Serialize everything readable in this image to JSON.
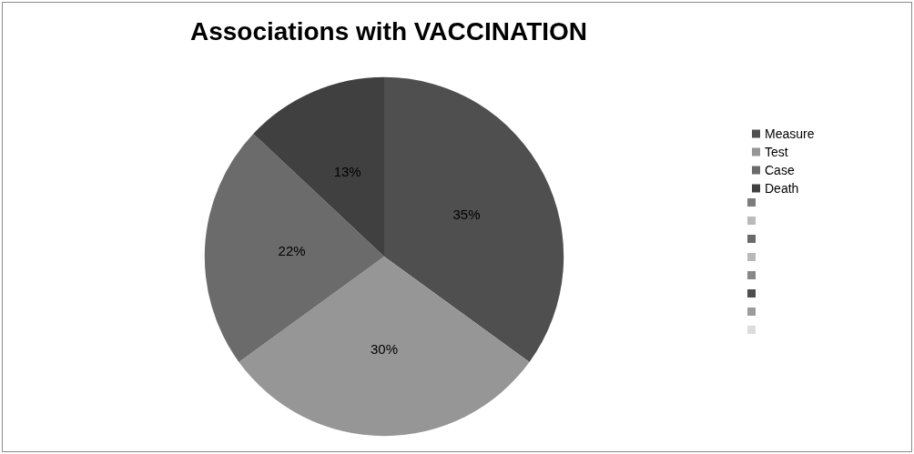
{
  "chart_data": {
    "type": "pie",
    "title": "Associations with VACCINATION",
    "categories": [
      "Measure",
      "Test",
      "Case",
      "Death",
      null,
      null,
      null,
      null,
      null,
      null,
      null,
      null
    ],
    "values": [
      35,
      30,
      22,
      13,
      null,
      null,
      null,
      null,
      null,
      null,
      null,
      null
    ],
    "value_labels": [
      "35%",
      "30%",
      "22%",
      "13%",
      null,
      null,
      null,
      null,
      null,
      null,
      null,
      null
    ],
    "colors": [
      "#4f4f4f",
      "#969696",
      "#6b6b6b",
      "#404040",
      "#7c7c7c",
      "#bababa",
      "#6a6a6a",
      "#b9b9b9",
      "#888888",
      "#4e4e4e",
      "#9c9c9c",
      "#dcdcdc"
    ],
    "legend": "right"
  }
}
